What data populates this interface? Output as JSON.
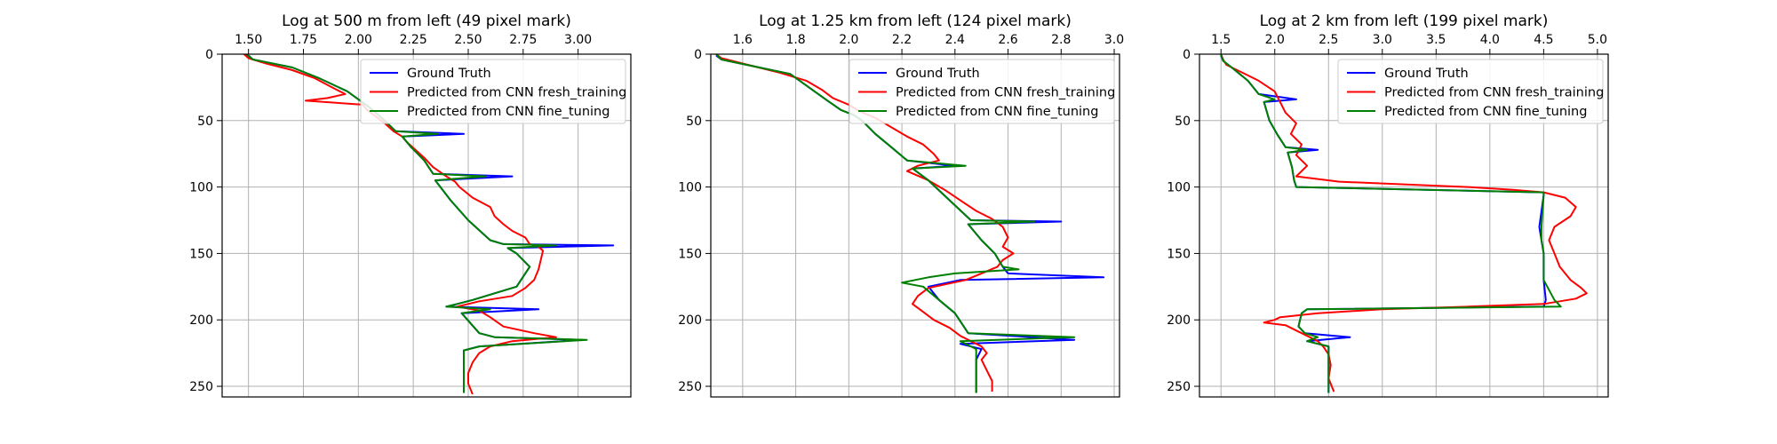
{
  "colors": {
    "ground_truth": "#0000ff",
    "fresh": "#ff0000",
    "fine": "#008000"
  },
  "chart_data": [
    {
      "type": "line",
      "orientation": "depth-vertical",
      "title": "Log at 500 m from left (49 pixel mark)",
      "xlim": [
        1.38,
        3.24
      ],
      "ylim": [
        258,
        0
      ],
      "xticks": [
        1.5,
        1.75,
        2.0,
        2.25,
        2.5,
        2.75,
        3.0
      ],
      "xtick_labels": [
        "1.50",
        "1.75",
        "2.00",
        "2.25",
        "2.50",
        "2.75",
        "3.00"
      ],
      "yticks": [
        0,
        50,
        100,
        150,
        200,
        250
      ],
      "ytick_labels": [
        "0",
        "50",
        "100",
        "150",
        "200",
        "250"
      ],
      "legend": {
        "position": "top-right",
        "entries": [
          "Ground Truth",
          "Predicted from CNN fresh_training",
          "Predicted from CNN fine_tuning"
        ]
      },
      "series": [
        {
          "name": "Ground Truth",
          "color": "#0000ff",
          "y": [
            1,
            4,
            10,
            18,
            28,
            40,
            50,
            58,
            60,
            62,
            70,
            80,
            90,
            92,
            95,
            110,
            125,
            140,
            143,
            144,
            146,
            150,
            160,
            175,
            185,
            188,
            190,
            192,
            195,
            210,
            213,
            215,
            220,
            223,
            230,
            240,
            255
          ],
          "x": [
            1.5,
            1.52,
            1.7,
            1.82,
            1.95,
            2.05,
            2.12,
            2.17,
            2.48,
            2.2,
            2.24,
            2.3,
            2.34,
            2.7,
            2.35,
            2.42,
            2.5,
            2.6,
            2.66,
            3.16,
            2.68,
            2.72,
            2.78,
            2.72,
            2.52,
            2.45,
            2.4,
            2.82,
            2.47,
            2.55,
            2.62,
            3.02,
            2.55,
            2.48,
            2.48,
            2.48,
            2.48
          ]
        },
        {
          "name": "Predicted from CNN fresh_training",
          "color": "#ff0000",
          "y": [
            0,
            3,
            7,
            12,
            18,
            25,
            30,
            33,
            35,
            38,
            42,
            47,
            52,
            58,
            62,
            66,
            72,
            78,
            85,
            92,
            96,
            100,
            108,
            115,
            122,
            128,
            133,
            138,
            143,
            145,
            148,
            155,
            162,
            170,
            176,
            182,
            186,
            190,
            193,
            198,
            205,
            210,
            213,
            216,
            220,
            225,
            232,
            240,
            248,
            256
          ],
          "x": [
            1.48,
            1.5,
            1.58,
            1.7,
            1.8,
            1.88,
            1.94,
            1.86,
            1.76,
            2.02,
            2.04,
            2.08,
            2.12,
            2.16,
            2.2,
            2.22,
            2.26,
            2.3,
            2.34,
            2.4,
            2.44,
            2.46,
            2.52,
            2.6,
            2.62,
            2.66,
            2.7,
            2.76,
            2.78,
            2.82,
            2.84,
            2.83,
            2.82,
            2.8,
            2.76,
            2.7,
            2.55,
            2.45,
            2.55,
            2.6,
            2.66,
            2.8,
            2.9,
            2.7,
            2.6,
            2.55,
            2.52,
            2.5,
            2.5,
            2.52
          ]
        },
        {
          "name": "Predicted from CNN fine_tuning",
          "color": "#008000",
          "y": [
            0,
            4,
            10,
            18,
            28,
            40,
            50,
            58,
            60,
            62,
            70,
            80,
            90,
            92,
            95,
            110,
            125,
            140,
            143,
            144,
            146,
            150,
            160,
            175,
            185,
            188,
            190,
            192,
            195,
            210,
            213,
            215,
            220,
            223,
            230,
            240,
            255
          ],
          "x": [
            1.49,
            1.52,
            1.7,
            1.82,
            1.95,
            2.05,
            2.12,
            2.17,
            2.36,
            2.2,
            2.24,
            2.3,
            2.34,
            2.58,
            2.35,
            2.42,
            2.5,
            2.6,
            2.66,
            2.9,
            2.68,
            2.72,
            2.78,
            2.72,
            2.52,
            2.45,
            2.4,
            2.6,
            2.47,
            2.55,
            2.62,
            3.04,
            2.55,
            2.48,
            2.48,
            2.48,
            2.48
          ]
        }
      ]
    },
    {
      "type": "line",
      "orientation": "depth-vertical",
      "title": "Log at 1.25 km from left (124 pixel mark)",
      "xlim": [
        1.48,
        3.02
      ],
      "ylim": [
        258,
        0
      ],
      "xticks": [
        1.6,
        1.8,
        2.0,
        2.2,
        2.4,
        2.6,
        2.8,
        3.0
      ],
      "xtick_labels": [
        "1.6",
        "1.8",
        "2.0",
        "2.2",
        "2.4",
        "2.6",
        "2.8",
        "3.0"
      ],
      "yticks": [
        0,
        50,
        100,
        150,
        200,
        250
      ],
      "ytick_labels": [
        "0",
        "50",
        "100",
        "150",
        "200",
        "250"
      ],
      "legend": {
        "position": "top-right",
        "entries": [
          "Ground Truth",
          "Predicted from CNN fresh_training",
          "Predicted from CNN fine_tuning"
        ]
      },
      "series": [
        {
          "name": "Ground Truth",
          "color": "#0000ff",
          "y": [
            1,
            4,
            15,
            25,
            35,
            42,
            46,
            50,
            60,
            70,
            80,
            84,
            86,
            95,
            110,
            125,
            126,
            128,
            140,
            150,
            160,
            165,
            168,
            170,
            175,
            185,
            195,
            210,
            215,
            218,
            222,
            230,
            240,
            255
          ],
          "x": [
            1.5,
            1.52,
            1.78,
            1.85,
            1.92,
            1.97,
            2.02,
            2.05,
            2.1,
            2.16,
            2.22,
            2.4,
            2.24,
            2.3,
            2.38,
            2.46,
            2.8,
            2.45,
            2.5,
            2.55,
            2.58,
            2.6,
            2.96,
            2.42,
            2.3,
            2.34,
            2.4,
            2.45,
            2.85,
            2.42,
            2.5,
            2.48,
            2.48,
            2.48
          ]
        },
        {
          "name": "Predicted from CNN fresh_training",
          "color": "#ff0000",
          "y": [
            0,
            3,
            8,
            14,
            20,
            27,
            33,
            38,
            43,
            48,
            55,
            62,
            68,
            75,
            80,
            84,
            88,
            95,
            102,
            110,
            118,
            124,
            130,
            138,
            145,
            150,
            155,
            160,
            165,
            170,
            176,
            182,
            188,
            194,
            200,
            206,
            212,
            216,
            220,
            225,
            230,
            238,
            246,
            254
          ],
          "x": [
            1.5,
            1.52,
            1.62,
            1.74,
            1.84,
            1.9,
            1.94,
            2.0,
            2.04,
            2.1,
            2.16,
            2.22,
            2.28,
            2.32,
            2.34,
            2.26,
            2.22,
            2.3,
            2.36,
            2.42,
            2.48,
            2.54,
            2.58,
            2.6,
            2.58,
            2.62,
            2.58,
            2.56,
            2.5,
            2.44,
            2.3,
            2.26,
            2.24,
            2.28,
            2.32,
            2.38,
            2.42,
            2.46,
            2.5,
            2.52,
            2.5,
            2.52,
            2.54,
            2.54
          ]
        },
        {
          "name": "Predicted from CNN fine_tuning",
          "color": "#008000",
          "y": [
            0,
            4,
            15,
            25,
            35,
            42,
            46,
            50,
            60,
            70,
            80,
            84,
            86,
            95,
            110,
            125,
            126,
            128,
            140,
            150,
            160,
            162,
            165,
            168,
            172,
            175,
            185,
            195,
            210,
            213,
            216,
            222,
            230,
            240,
            255
          ],
          "x": [
            1.5,
            1.52,
            1.78,
            1.85,
            1.92,
            1.97,
            2.02,
            2.05,
            2.1,
            2.16,
            2.22,
            2.44,
            2.24,
            2.3,
            2.38,
            2.46,
            2.7,
            2.45,
            2.5,
            2.55,
            2.58,
            2.64,
            2.4,
            2.3,
            2.2,
            2.28,
            2.34,
            2.4,
            2.45,
            2.85,
            2.42,
            2.48,
            2.48,
            2.48,
            2.48
          ]
        }
      ]
    },
    {
      "type": "line",
      "orientation": "depth-vertical",
      "title": "Log at 2 km from left (199 pixel mark)",
      "xlim": [
        1.3,
        5.1
      ],
      "ylim": [
        258,
        0
      ],
      "xticks": [
        1.5,
        2.0,
        2.5,
        3.0,
        3.5,
        4.0,
        4.5,
        5.0
      ],
      "xtick_labels": [
        "1.5",
        "2.0",
        "2.5",
        "3.0",
        "3.5",
        "4.0",
        "4.5",
        "5.0"
      ],
      "yticks": [
        0,
        50,
        100,
        150,
        200,
        250
      ],
      "ytick_labels": [
        "0",
        "50",
        "100",
        "150",
        "200",
        "250"
      ],
      "legend": {
        "position": "top-right",
        "entries": [
          "Ground Truth",
          "Predicted from CNN fresh_training",
          "Predicted from CNN fine_tuning"
        ]
      },
      "series": [
        {
          "name": "Ground Truth",
          "color": "#0000ff",
          "y": [
            1,
            5,
            10,
            20,
            30,
            34,
            36,
            50,
            60,
            70,
            72,
            74,
            85,
            95,
            100,
            104,
            106,
            130,
            140,
            150,
            170,
            185,
            190,
            192,
            195,
            205,
            210,
            213,
            216,
            220,
            230,
            240,
            255
          ],
          "x": [
            1.5,
            1.52,
            1.6,
            1.75,
            1.85,
            2.2,
            1.9,
            1.95,
            2.02,
            2.1,
            2.4,
            2.12,
            2.16,
            2.18,
            2.2,
            4.5,
            4.5,
            4.46,
            4.48,
            4.5,
            4.5,
            4.52,
            4.5,
            2.3,
            2.25,
            2.22,
            2.28,
            2.7,
            2.3,
            2.5,
            2.5,
            2.5,
            2.5
          ]
        },
        {
          "name": "Predicted from CNN fresh_training",
          "color": "#ff0000",
          "y": [
            0,
            4,
            8,
            14,
            20,
            28,
            36,
            44,
            52,
            60,
            68,
            76,
            84,
            92,
            96,
            98,
            100,
            102,
            104,
            108,
            115,
            122,
            130,
            140,
            150,
            160,
            170,
            176,
            180,
            184,
            188,
            190,
            192,
            195,
            198,
            200,
            202,
            204,
            208,
            212,
            216,
            220,
            226,
            234,
            244,
            254
          ],
          "x": [
            1.5,
            1.52,
            1.55,
            1.7,
            1.85,
            2.0,
            2.05,
            2.1,
            2.2,
            2.15,
            2.25,
            2.2,
            2.3,
            2.2,
            2.6,
            3.2,
            3.8,
            4.2,
            4.5,
            4.7,
            4.8,
            4.75,
            4.6,
            4.55,
            4.6,
            4.65,
            4.75,
            4.85,
            4.9,
            4.8,
            4.5,
            3.8,
            3.0,
            2.4,
            2.05,
            2.0,
            1.9,
            2.1,
            2.2,
            2.3,
            2.4,
            2.45,
            2.5,
            2.52,
            2.5,
            2.55
          ]
        },
        {
          "name": "Predicted from CNN fine_tuning",
          "color": "#008000",
          "y": [
            0,
            5,
            10,
            20,
            30,
            34,
            36,
            50,
            60,
            70,
            72,
            74,
            85,
            95,
            100,
            104,
            106,
            130,
            140,
            150,
            170,
            185,
            190,
            192,
            195,
            205,
            210,
            213,
            216,
            220,
            230,
            240,
            255
          ],
          "x": [
            1.5,
            1.52,
            1.6,
            1.75,
            1.85,
            2.0,
            1.9,
            1.95,
            2.02,
            2.1,
            2.3,
            2.12,
            2.16,
            2.18,
            2.2,
            4.5,
            4.5,
            4.48,
            4.48,
            4.5,
            4.5,
            4.6,
            4.66,
            2.3,
            2.25,
            2.22,
            2.28,
            2.4,
            2.3,
            2.5,
            2.5,
            2.5,
            2.5
          ]
        }
      ]
    }
  ]
}
